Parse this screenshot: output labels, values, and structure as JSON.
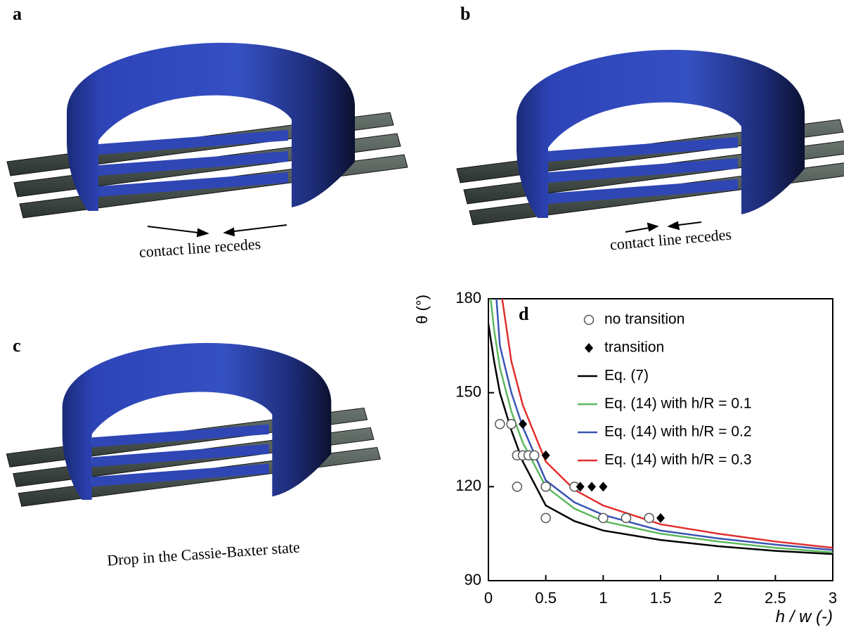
{
  "panels": [
    {
      "label": "a",
      "caption": "contact line recedes"
    },
    {
      "label": "b",
      "caption": "contact line recedes"
    },
    {
      "label": "c",
      "caption": "Drop in the Cassie-Baxter state"
    }
  ],
  "chart_data": {
    "type": "line",
    "label": "d",
    "xlabel": "h / w (-)",
    "ylabel": "θ (°)",
    "xlim": [
      0,
      3
    ],
    "ylim": [
      90,
      180
    ],
    "xticks": [
      0,
      0.5,
      1,
      1.5,
      2,
      2.5,
      3
    ],
    "yticks": [
      90,
      120,
      150,
      180
    ],
    "grid": false,
    "series": [
      {
        "name": "no transition",
        "color": "#555555",
        "marker": "open-circle",
        "x": [
          0.1,
          0.2,
          0.25,
          0.3,
          0.35,
          0.4,
          0.25,
          0.5,
          0.5,
          0.75,
          1,
          1.2,
          1.4
        ],
        "values": [
          140,
          140,
          130,
          130,
          130,
          130,
          120,
          120,
          110,
          120,
          110,
          110,
          110
        ]
      },
      {
        "name": "transition",
        "color": "#000000",
        "marker": "diamond",
        "x": [
          0.3,
          0.5,
          0.8,
          0.9,
          1,
          1.5
        ],
        "values": [
          140,
          130,
          120,
          120,
          120,
          110
        ]
      },
      {
        "name": "Eq. (7)",
        "color": "#000000",
        "x": [
          0,
          0.05,
          0.1,
          0.2,
          0.3,
          0.5,
          0.75,
          1,
          1.5,
          2,
          2.5,
          3
        ],
        "values": [
          172,
          160,
          150,
          138,
          128,
          114,
          109,
          106,
          103,
          101,
          99.5,
          98.5
        ]
      },
      {
        "name": "Eq. (14) with h/R = 0.1",
        "color": "#5cb85c",
        "x": [
          0.02,
          0.05,
          0.1,
          0.2,
          0.3,
          0.5,
          0.75,
          1,
          1.5,
          2,
          2.5,
          3
        ],
        "values": [
          180,
          170,
          158,
          144,
          134,
          120,
          113,
          109,
          105,
          102.5,
          100.5,
          99
        ]
      },
      {
        "name": "Eq. (14) with h/R = 0.2",
        "color": "#3a55b4",
        "x": [
          0.07,
          0.1,
          0.2,
          0.3,
          0.5,
          0.75,
          1,
          1.5,
          2,
          2.5,
          3
        ],
        "values": [
          180,
          165,
          150,
          139,
          122,
          115,
          111,
          106,
          103.5,
          101.5,
          99.8
        ]
      },
      {
        "name": "Eq. (14) with h/R = 0.3",
        "color": "#e0302e",
        "x": [
          0.12,
          0.2,
          0.3,
          0.5,
          0.75,
          1,
          1.5,
          2,
          2.5,
          3
        ],
        "values": [
          180,
          160,
          146,
          128,
          119,
          114,
          108,
          105,
          102.5,
          100.5
        ]
      }
    ]
  }
}
